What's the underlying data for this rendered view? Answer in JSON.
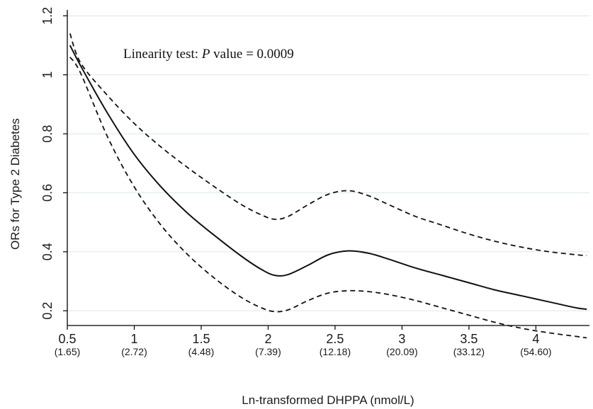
{
  "chart_data": {
    "type": "line",
    "title": "",
    "xlabel": "Ln-transformed DHPPA (nmol/L)",
    "ylabel": "ORs for Type 2 Diabetes",
    "xlim": [
      0.5,
      4.4
    ],
    "ylim": [
      0.15,
      1.22
    ],
    "grid": "horizontal",
    "x_ticks": [
      {
        "value": 0.5,
        "label": "0.5",
        "sublabel": "(1.65)"
      },
      {
        "value": 1,
        "label": "1",
        "sublabel": "(2.72)"
      },
      {
        "value": 1.5,
        "label": "1.5",
        "sublabel": "(4.48)"
      },
      {
        "value": 2,
        "label": "2",
        "sublabel": "(7.39)"
      },
      {
        "value": 2.5,
        "label": "2.5",
        "sublabel": "(12.18)"
      },
      {
        "value": 3,
        "label": "3",
        "sublabel": "(20.09)"
      },
      {
        "value": 3.5,
        "label": "3.5",
        "sublabel": "(33.12)"
      },
      {
        "value": 4,
        "label": "4",
        "sublabel": "(54.60)"
      }
    ],
    "y_ticks": [
      {
        "value": 0.2,
        "label": "0.2"
      },
      {
        "value": 0.4,
        "label": "0.4"
      },
      {
        "value": 0.6,
        "label": "0.6"
      },
      {
        "value": 0.8,
        "label": "0.8"
      },
      {
        "value": 1.0,
        "label": "1"
      },
      {
        "value": 1.2,
        "label": "1.2"
      }
    ],
    "annotation": {
      "prefix": "Linearity test: ",
      "italic": "P",
      "suffix": " value = 0.0009"
    },
    "series": [
      {
        "style": "solid",
        "x": [
          0.52,
          0.6,
          0.8,
          1.0,
          1.2,
          1.4,
          1.6,
          1.8,
          1.95,
          2.05,
          2.15,
          2.3,
          2.45,
          2.6,
          2.75,
          2.9,
          3.1,
          3.3,
          3.5,
          3.7,
          3.9,
          4.1,
          4.3,
          4.38
        ],
        "y": [
          1.1,
          1.03,
          0.87,
          0.73,
          0.62,
          0.53,
          0.455,
          0.385,
          0.34,
          0.32,
          0.323,
          0.355,
          0.39,
          0.403,
          0.395,
          0.375,
          0.345,
          0.32,
          0.295,
          0.27,
          0.25,
          0.23,
          0.21,
          0.205
        ]
      },
      {
        "style": "dashed",
        "x": [
          0.52,
          0.6,
          0.8,
          1.0,
          1.2,
          1.4,
          1.6,
          1.8,
          1.95,
          2.05,
          2.15,
          2.3,
          2.45,
          2.6,
          2.75,
          2.9,
          3.1,
          3.3,
          3.5,
          3.7,
          3.9,
          4.1,
          4.3,
          4.38
        ],
        "y": [
          1.14,
          1.04,
          0.93,
          0.835,
          0.755,
          0.685,
          0.62,
          0.56,
          0.525,
          0.51,
          0.52,
          0.56,
          0.595,
          0.607,
          0.59,
          0.56,
          0.52,
          0.49,
          0.46,
          0.435,
          0.415,
          0.4,
          0.39,
          0.387
        ]
      },
      {
        "style": "dashed",
        "x": [
          0.52,
          0.6,
          0.8,
          1.0,
          1.2,
          1.4,
          1.6,
          1.8,
          1.95,
          2.05,
          2.15,
          2.3,
          2.45,
          2.6,
          2.75,
          2.9,
          3.1,
          3.3,
          3.5,
          3.7,
          3.9,
          4.1,
          4.3,
          4.38
        ],
        "y": [
          1.06,
          1.005,
          0.79,
          0.62,
          0.49,
          0.39,
          0.31,
          0.245,
          0.21,
          0.197,
          0.203,
          0.235,
          0.26,
          0.268,
          0.265,
          0.255,
          0.235,
          0.21,
          0.185,
          0.16,
          0.14,
          0.125,
          0.113,
          0.108
        ]
      }
    ]
  }
}
